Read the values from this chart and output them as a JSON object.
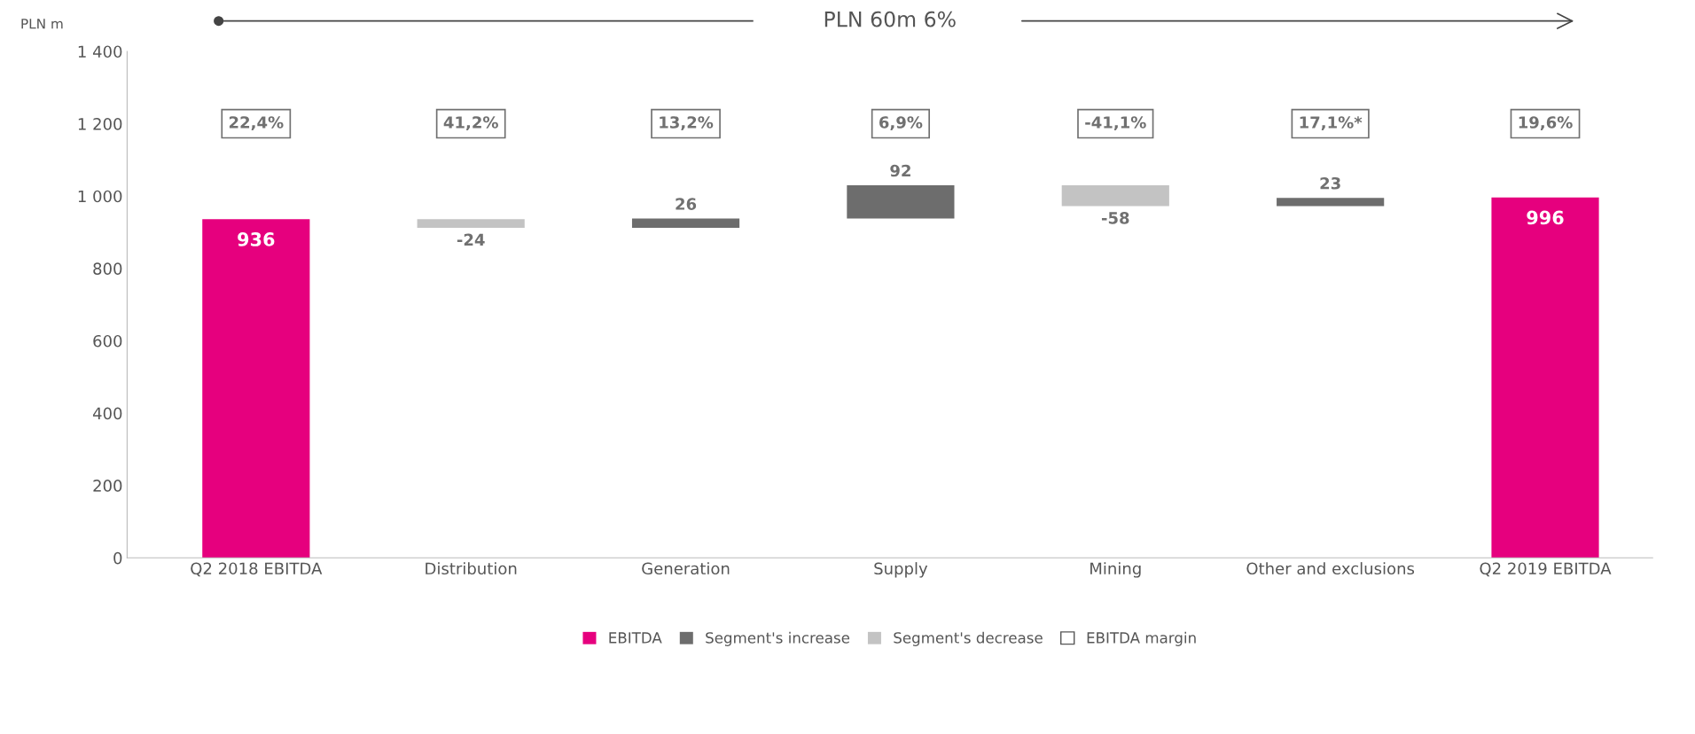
{
  "chart_data": {
    "type": "bar",
    "ylabel": "PLN m",
    "categories": [
      "Q2 2018 EBITDA",
      "Distribution",
      "Generation",
      "Supply",
      "Mining",
      "Other and exclusions",
      "Q2 2019 EBITDA"
    ],
    "base": [
      0,
      936,
      912,
      938,
      1030,
      972,
      0
    ],
    "values": [
      936,
      -24,
      26,
      92,
      -58,
      23,
      996
    ],
    "colors": [
      "#e6007e",
      "#c3c3c3",
      "#6d6d6d",
      "#6d6d6d",
      "#c3c3c3",
      "#6d6d6d",
      "#e6007e"
    ],
    "data_labels": true,
    "ylim": [
      0,
      1400
    ],
    "yticks": [
      0,
      200,
      400,
      600,
      800,
      {
        "value": 1000,
        "label": "1 000"
      },
      {
        "value": 1200,
        "label": "1 200"
      },
      {
        "value": 1400,
        "label": "1 400"
      }
    ],
    "grid": false,
    "annotations": [
      "PLN 60m 6%",
      "EBITDA",
      "Segment's increase",
      "Segment's decrease",
      "EBITDA margin",
      "22,4%",
      "41,2%",
      "13,2%",
      "6,9%",
      "-41,1%",
      "17,1%*",
      "19,6%"
    ]
  }
}
